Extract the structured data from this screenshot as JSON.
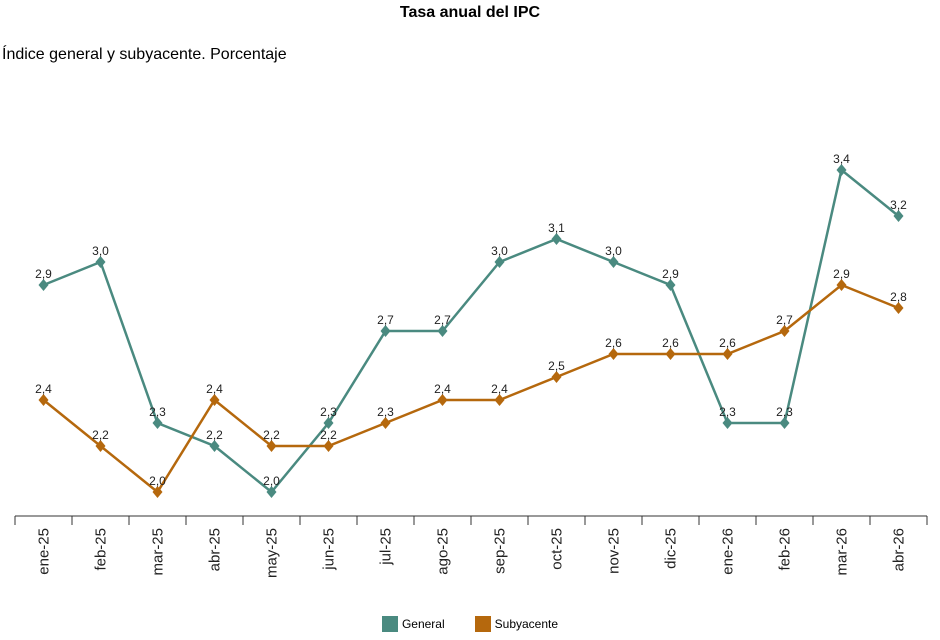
{
  "chart_data": {
    "type": "line",
    "title": "Tasa anual del IPC",
    "subtitle": "Índice general y subyacente. Porcentaje",
    "categories": [
      "ene-25",
      "feb-25",
      "mar-25",
      "abr-25",
      "may-25",
      "jun-25",
      "jul-25",
      "ago-25",
      "sep-25",
      "oct-25",
      "nov-25",
      "dic-25",
      "ene-26",
      "feb-26",
      "mar-26",
      "abr-26"
    ],
    "series": [
      {
        "name": "General",
        "color": "#4a8a80",
        "values": [
          2.9,
          3.0,
          2.3,
          2.2,
          2.0,
          2.3,
          2.7,
          2.7,
          3.0,
          3.1,
          3.0,
          2.9,
          2.3,
          2.3,
          3.4,
          3.2
        ],
        "labels": [
          "2,9",
          "3,0",
          "2,3",
          "2,2",
          "2,0",
          "2,3",
          "2,7",
          "2,7",
          "3,0",
          "3,1",
          "3,0",
          "2,9",
          "2,3",
          "2,3",
          "3,4",
          "3,2"
        ]
      },
      {
        "name": "Subyacente",
        "color": "#b5680d",
        "values": [
          2.4,
          2.2,
          2.0,
          2.4,
          2.2,
          2.2,
          2.3,
          2.4,
          2.4,
          2.5,
          2.6,
          2.6,
          2.6,
          2.7,
          2.9,
          2.8
        ],
        "labels": [
          "2,4",
          "2,2",
          "2,0",
          "2,4",
          "2,2",
          "2,2",
          "2,3",
          "2,4",
          "2,4",
          "2,5",
          "2,6",
          "2,6",
          "2,6",
          "2,7",
          "2,9",
          "2,8"
        ]
      }
    ],
    "ylim": [
      1.9,
      3.5
    ],
    "marker": "diamond",
    "grid": false,
    "legend_position": "bottom-center"
  }
}
